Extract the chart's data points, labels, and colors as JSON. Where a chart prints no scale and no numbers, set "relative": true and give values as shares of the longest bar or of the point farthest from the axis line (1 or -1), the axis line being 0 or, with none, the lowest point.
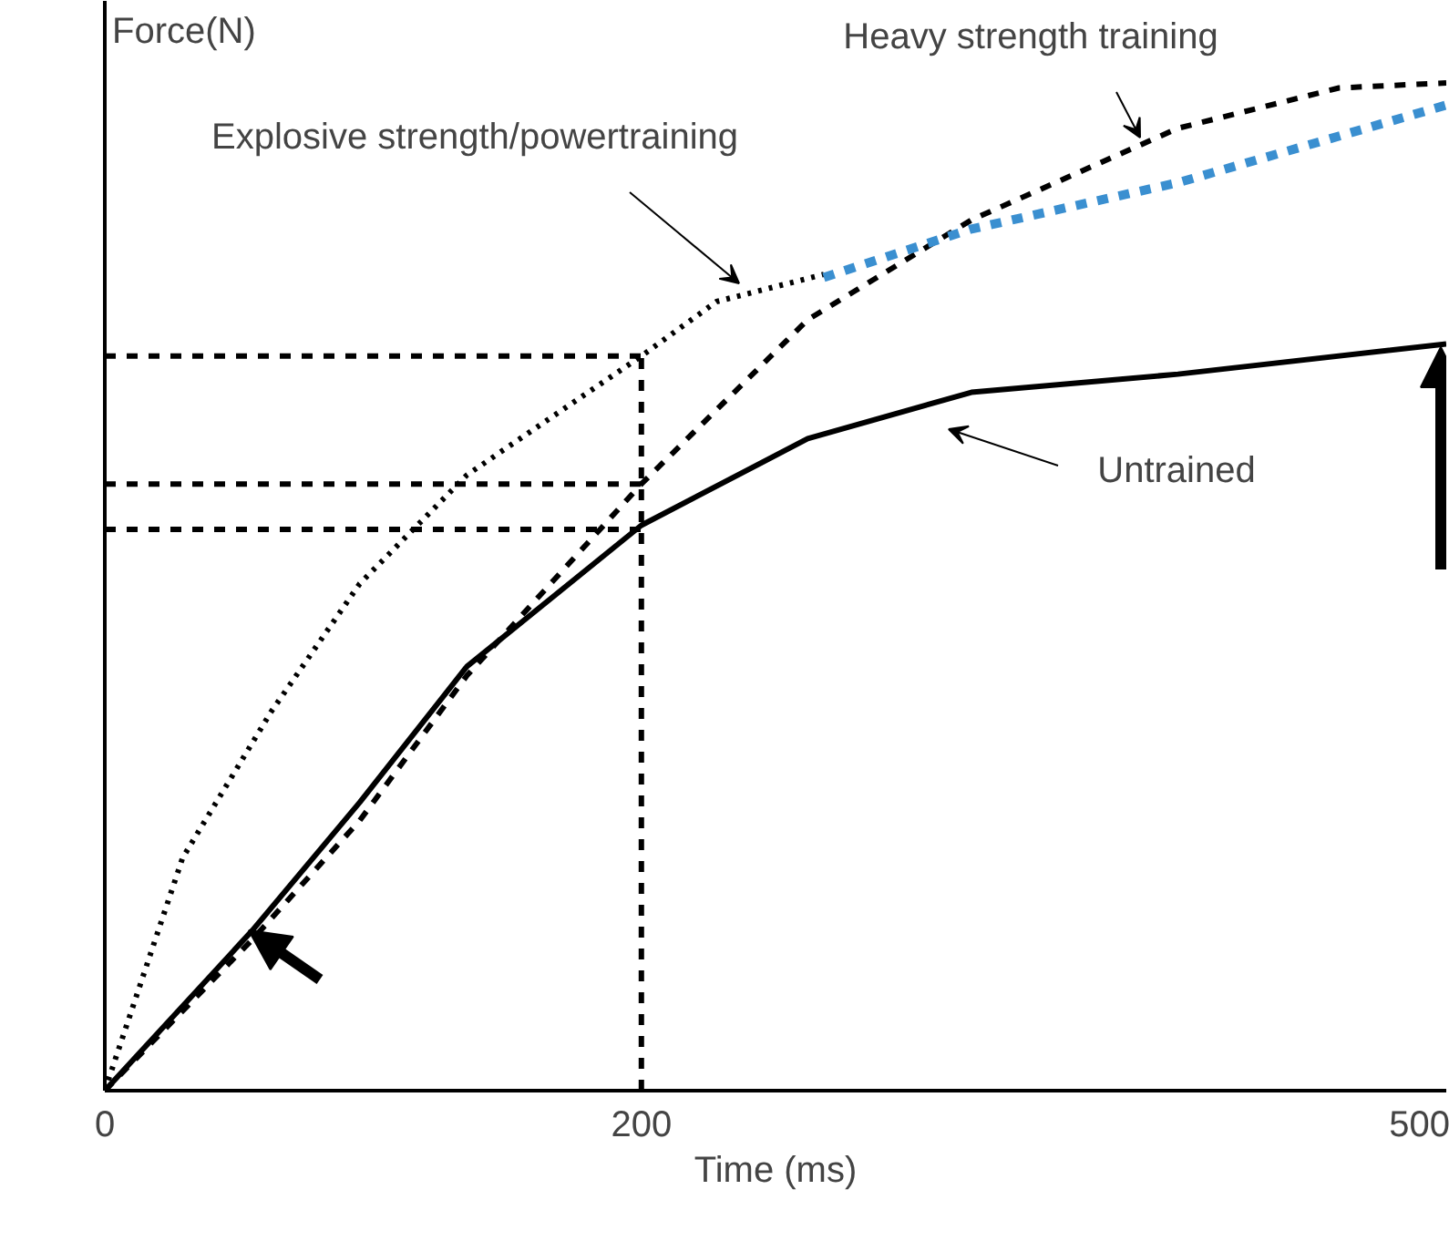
{
  "chart_data": {
    "type": "line",
    "relative": true,
    "xlabel": "Time (ms)",
    "ylabel": "Force(N)",
    "xlim": [
      0,
      500
    ],
    "xticks": [
      0,
      200,
      500
    ],
    "tick_labels": "x",
    "grid": false,
    "marker": "none",
    "series": [
      {
        "color": "#000000",
        "line_style": "solid",
        "x": [
          0,
          55,
          95,
          135,
          200,
          262,
          323,
          400,
          500
        ],
        "values": [
          0,
          0.159,
          0.286,
          0.421,
          0.561,
          0.647,
          0.693,
          0.711,
          0.741
        ]
      },
      {
        "color": "#000000",
        "line_style": "dashed",
        "x": [
          0,
          55,
          95,
          135,
          200,
          262,
          323,
          400,
          460,
          500
        ],
        "values": [
          0,
          0.15,
          0.268,
          0.412,
          0.602,
          0.765,
          0.864,
          0.955,
          0.995,
          1.0
        ]
      },
      {
        "color": "#000000",
        "line_style": "dotted",
        "x": [
          0,
          29,
          62,
          95,
          135,
          200,
          228,
          268
        ],
        "values": [
          0,
          0.231,
          0.376,
          0.503,
          0.611,
          0.729,
          0.783,
          0.81
        ]
      },
      {
        "color": "#3a8fd0",
        "line_style": "dashed",
        "x": [
          268,
          323,
          400,
          500
        ],
        "values": [
          0.807,
          0.855,
          0.901,
          0.978
        ]
      },
      {
        "color": "#000000",
        "line_style": "dashed",
        "x": [
          0,
          200
        ],
        "values": [
          0.729,
          0.729
        ]
      },
      {
        "color": "#000000",
        "line_style": "dashed",
        "x": [
          0,
          200
        ],
        "values": [
          0.602,
          0.602
        ]
      },
      {
        "color": "#000000",
        "line_style": "dashed",
        "x": [
          0,
          200
        ],
        "values": [
          0.557,
          0.557
        ]
      },
      {
        "color": "#000000",
        "line_style": "dashed",
        "x": [
          200,
          200
        ],
        "values": [
          0,
          0.729
        ]
      }
    ],
    "annotations": [
      "Heavy strength training",
      "Explosive strength/powertraining",
      "Untrained"
    ]
  }
}
